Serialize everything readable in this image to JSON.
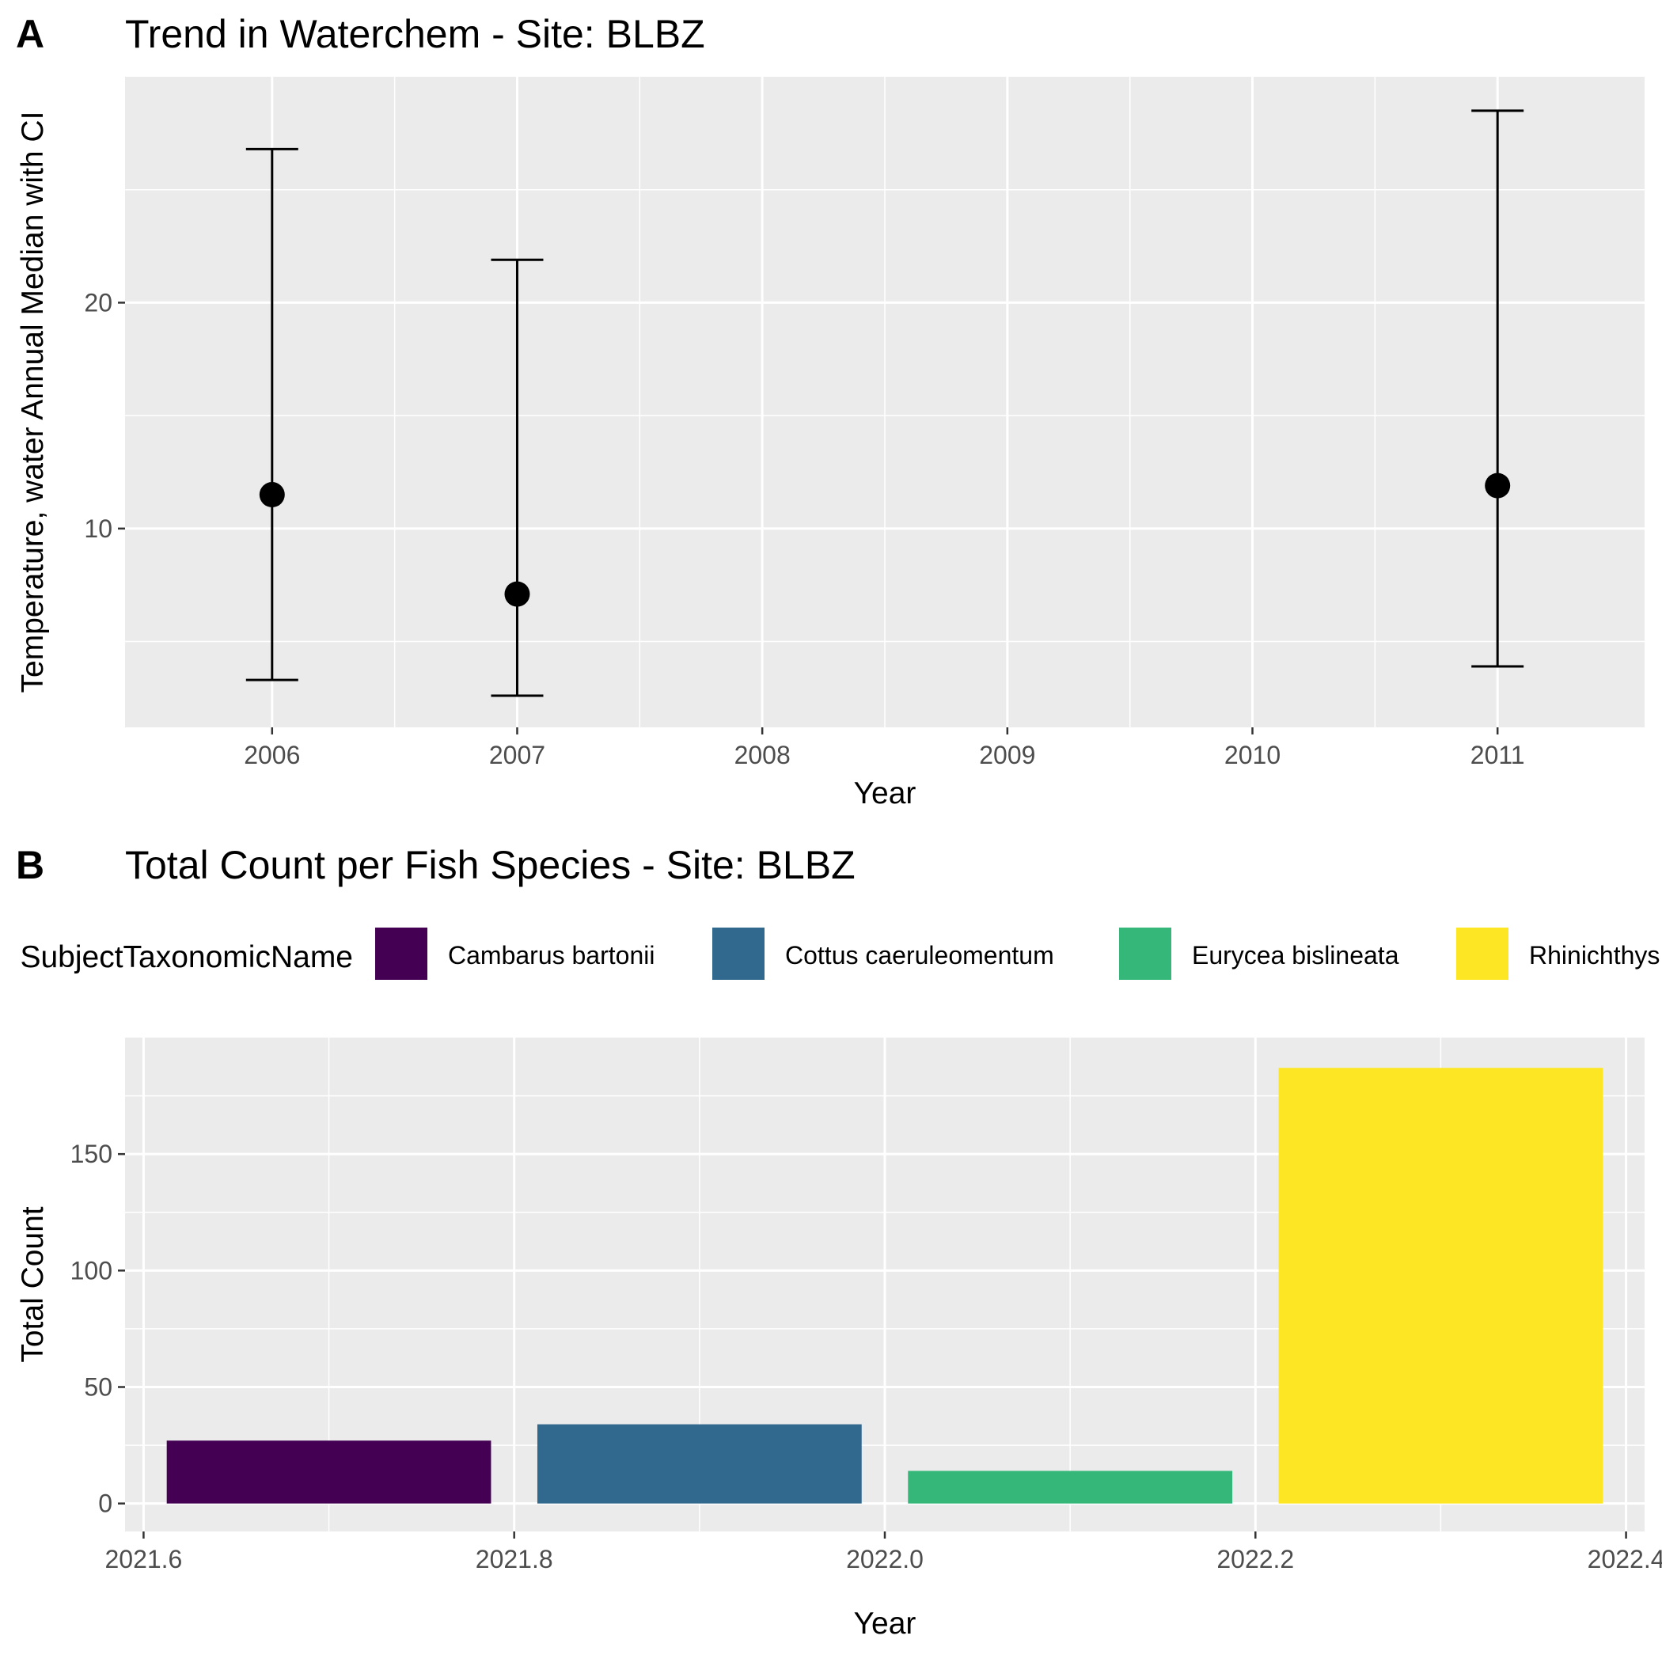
{
  "chart_data": [
    {
      "panel": "A",
      "type": "scatter",
      "title": "Trend in Waterchem - Site: BLBZ",
      "xlabel": "Year",
      "ylabel": "Temperature, water Annual Median with CI",
      "categories": [
        "2006",
        "2007",
        "2008",
        "2009",
        "2010",
        "2011"
      ],
      "points": [
        {
          "x": "2006",
          "median": 11.5,
          "lower": 3.3,
          "upper": 26.8
        },
        {
          "x": "2007",
          "median": 7.1,
          "lower": 2.6,
          "upper": 21.9
        },
        {
          "x": "2011",
          "median": 11.9,
          "lower": 3.9,
          "upper": 28.5
        }
      ],
      "y_ticks": [
        10,
        20
      ],
      "ylim": [
        1.2,
        30.0
      ],
      "grid": true,
      "colors": {
        "point": "#000000",
        "panel_bg": "#EBEBEB",
        "grid": "#FFFFFF"
      }
    },
    {
      "panel": "B",
      "type": "bar",
      "title": "Total Count per Fish Species - Site: BLBZ",
      "xlabel": "Year",
      "ylabel": "Total Count",
      "legend_title": "SubjectTaxonomicName",
      "legend_position": "top",
      "series": [
        {
          "name": "Cambarus bartonii",
          "x": 2021.7,
          "value": 27,
          "color": "#440154"
        },
        {
          "name": "Cottus caeruleomentum",
          "x": 2021.9,
          "value": 34,
          "color": "#31688E"
        },
        {
          "name": "Eurycea bislineata",
          "x": 2022.1,
          "value": 14,
          "color": "#35B779"
        },
        {
          "name": "Rhinichthys atratulus",
          "x": 2022.3,
          "value": 187,
          "color": "#FDE725"
        }
      ],
      "bar_width": 0.175,
      "x_ticks": [
        "2021.6",
        "2021.8",
        "2022.0",
        "2022.2",
        "2022.4"
      ],
      "y_ticks": [
        0,
        50,
        100,
        150
      ],
      "xlim": [
        2021.59,
        2022.41
      ],
      "ylim": [
        -12,
        200
      ],
      "grid": true
    }
  ]
}
